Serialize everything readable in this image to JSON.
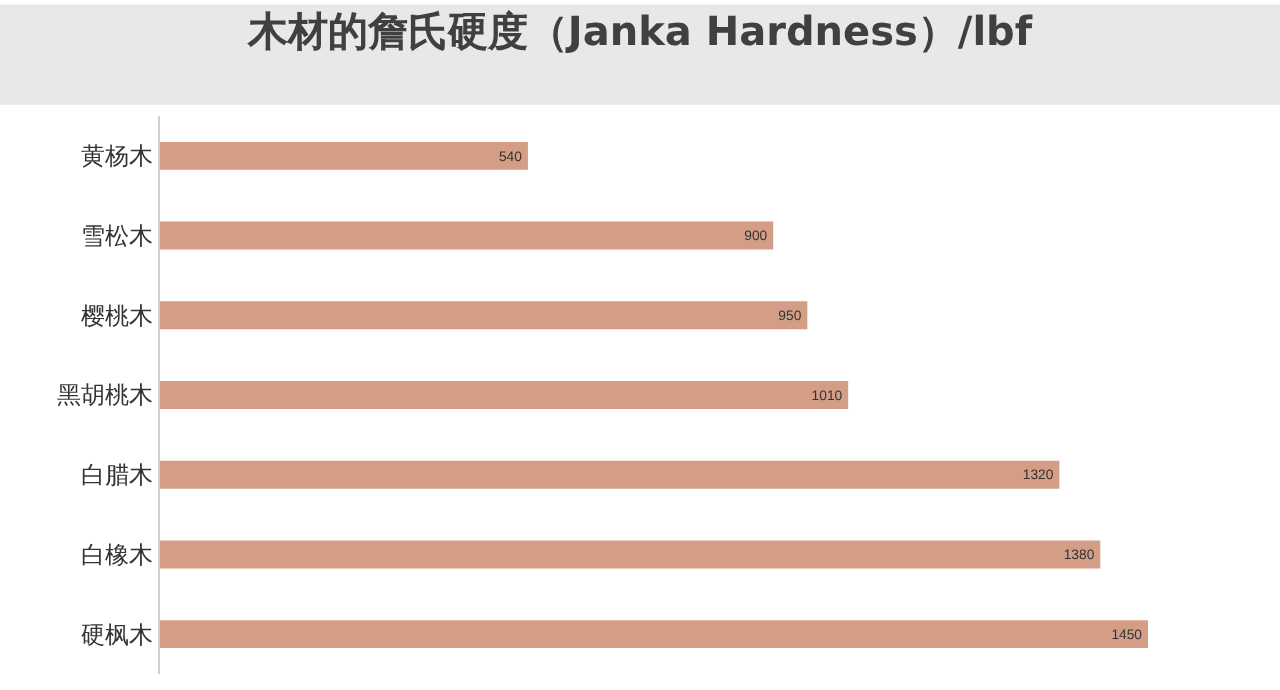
{
  "chart_data": {
    "type": "bar",
    "orientation": "horizontal",
    "title": "木材的詹氏硬度（Janka Hardness）/lbf",
    "categories": [
      "黄杨木",
      "雪松木",
      "樱桃木",
      "黑胡桃木",
      "白腊木",
      "白橡木",
      "硬枫木"
    ],
    "values": [
      540,
      900,
      950,
      1010,
      1320,
      1380,
      1450
    ],
    "color": "#d49e86",
    "data_labels": true
  }
}
